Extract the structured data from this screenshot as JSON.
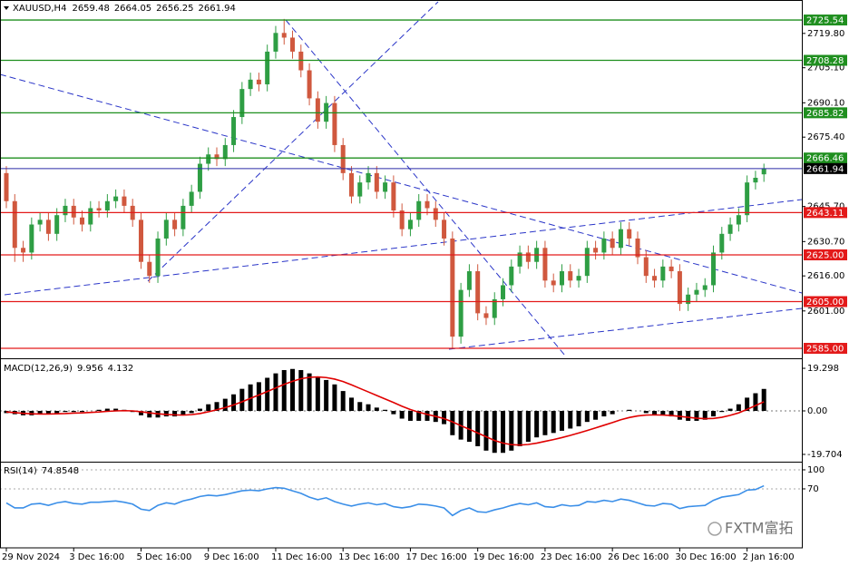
{
  "chart_data": [
    {
      "type": "candlestick",
      "title": "XAUUSD,H4",
      "categories": [
        "29 Nov 2024",
        null,
        null,
        null,
        null,
        null,
        null,
        null,
        "3 Dec 16:00",
        null,
        null,
        null,
        null,
        null,
        null,
        null,
        "5 Dec 16:00",
        null,
        null,
        null,
        null,
        null,
        null,
        null,
        "9 Dec 16:00",
        null,
        null,
        null,
        null,
        null,
        null,
        null,
        "11 Dec 16:00",
        null,
        null,
        null,
        null,
        null,
        null,
        null,
        "13 Dec 16:00",
        null,
        null,
        null,
        null,
        null,
        null,
        null,
        "17 Dec 16:00",
        null,
        null,
        null,
        null,
        null,
        null,
        null,
        "19 Dec 16:00",
        null,
        null,
        null,
        null,
        null,
        null,
        null,
        "23 Dec 16:00",
        null,
        null,
        null,
        null,
        null,
        null,
        null,
        "26 Dec 16:00",
        null,
        null,
        null,
        null,
        null,
        null,
        null,
        "30 Dec 16:00",
        null,
        null,
        null,
        null,
        null,
        null,
        null,
        "2 Jan 16:00",
        null,
        null
      ],
      "open": [
        2660,
        2648,
        2628,
        2626,
        2638,
        2640,
        2634,
        2642,
        2646,
        2641,
        2638,
        2645,
        2644,
        2648,
        2650,
        2646,
        2640,
        2622,
        2616,
        2632,
        2640,
        2636,
        2646,
        2652,
        2664,
        2668,
        2666,
        2672,
        2684,
        2696,
        2700,
        2698,
        2712,
        2720,
        2718,
        2712,
        2704,
        2692,
        2682,
        2690,
        2672,
        2660,
        2650,
        2656,
        2660,
        2652,
        2656,
        2644,
        2636,
        2640,
        2648,
        2645,
        2640,
        2632,
        2590,
        2610,
        2618,
        2600,
        2598,
        2606,
        2612,
        2620,
        2626,
        2622,
        2628,
        2614,
        2612,
        2618,
        2614,
        2616,
        2628,
        2626,
        2632,
        2628,
        2636,
        2632,
        2624,
        2616,
        2614,
        2620,
        2618,
        2604,
        2608,
        2610,
        2612,
        2626,
        2634,
        2638,
        2642,
        2656,
        2659.48
      ],
      "high": [
        2663,
        2651,
        2631,
        2641,
        2643,
        2643,
        2645,
        2649,
        2649,
        2644,
        2648,
        2648,
        2651,
        2653,
        2653,
        2649,
        2643,
        2625,
        2635,
        2643,
        2643,
        2649,
        2655,
        2667,
        2671,
        2671,
        2675,
        2687,
        2699,
        2703,
        2703,
        2715,
        2723,
        2726,
        2721,
        2715,
        2707,
        2695,
        2693,
        2693,
        2675,
        2663,
        2659,
        2663,
        2663,
        2659,
        2659,
        2647,
        2643,
        2651,
        2651,
        2648,
        2643,
        2635,
        2613,
        2621,
        2621,
        2603,
        2609,
        2615,
        2623,
        2629,
        2629,
        2631,
        2631,
        2617,
        2621,
        2621,
        2619,
        2631,
        2631,
        2635,
        2635,
        2639,
        2639,
        2635,
        2627,
        2619,
        2623,
        2623,
        2621,
        2611,
        2613,
        2615,
        2629,
        2637,
        2641,
        2645,
        2659,
        2661,
        2664.05
      ],
      "low": [
        2645,
        2622,
        2622,
        2623,
        2635,
        2631,
        2631,
        2639,
        2638,
        2635,
        2635,
        2641,
        2641,
        2645,
        2643,
        2637,
        2619,
        2613,
        2613,
        2629,
        2633,
        2633,
        2643,
        2649,
        2661,
        2663,
        2663,
        2669,
        2681,
        2693,
        2695,
        2695,
        2709,
        2715,
        2709,
        2701,
        2689,
        2679,
        2679,
        2669,
        2657,
        2647,
        2647,
        2653,
        2649,
        2649,
        2641,
        2633,
        2633,
        2637,
        2642,
        2637,
        2629,
        2585,
        2587,
        2607,
        2597,
        2595,
        2595,
        2603,
        2609,
        2617,
        2619,
        2619,
        2611,
        2609,
        2609,
        2611,
        2611,
        2613,
        2623,
        2623,
        2625,
        2625,
        2629,
        2621,
        2613,
        2611,
        2611,
        2615,
        2601,
        2601,
        2605,
        2607,
        2609,
        2623,
        2631,
        2635,
        2639,
        2653,
        2656.25
      ],
      "close": [
        2648,
        2628,
        2626,
        2638,
        2640,
        2634,
        2642,
        2646,
        2641,
        2638,
        2645,
        2644,
        2648,
        2650,
        2646,
        2640,
        2622,
        2616,
        2632,
        2640,
        2636,
        2646,
        2652,
        2664,
        2668,
        2666,
        2672,
        2684,
        2696,
        2700,
        2698,
        2712,
        2720,
        2718,
        2712,
        2704,
        2692,
        2682,
        2690,
        2672,
        2660,
        2650,
        2656,
        2660,
        2652,
        2656,
        2644,
        2636,
        2640,
        2648,
        2645,
        2640,
        2632,
        2590,
        2610,
        2618,
        2600,
        2598,
        2606,
        2612,
        2620,
        2626,
        2622,
        2628,
        2614,
        2612,
        2618,
        2614,
        2616,
        2628,
        2626,
        2632,
        2628,
        2636,
        2632,
        2624,
        2616,
        2614,
        2620,
        2618,
        2604,
        2608,
        2610,
        2612,
        2626,
        2634,
        2638,
        2642,
        2656,
        2658,
        2661.94
      ],
      "up_color": "#2e9e44",
      "down_color": "#d0583e",
      "current_color": "#2a2aa8",
      "levels": [
        {
          "value": 2725.54,
          "color": "#1f8f1f"
        },
        {
          "value": 2708.28,
          "color": "#1f8f1f"
        },
        {
          "value": 2685.82,
          "color": "#1f8f1f"
        },
        {
          "value": 2666.46,
          "color": "#1f8f1f"
        },
        {
          "value": 2643.11,
          "color": "#e31a1a"
        },
        {
          "value": 2625,
          "label": "2625.00",
          "color": "#e31a1a"
        },
        {
          "value": 2605,
          "label": "2605.00",
          "color": "#e31a1a"
        },
        {
          "value": 2585,
          "label": "2585.00",
          "color": "#e31a1a"
        }
      ],
      "ylim": [
        2581.9,
        2734.1
      ],
      "yticks": [
        {
          "value": 2719.8,
          "label": "2719.80"
        },
        {
          "value": 2705.1,
          "label": "2705.10"
        },
        {
          "value": 2690.1,
          "label": "2690.10"
        },
        {
          "value": 2675.4,
          "label": "2675.40"
        },
        {
          "value": 2645.7,
          "label": "2645.70"
        },
        {
          "value": 2630.7,
          "label": "2630.70"
        },
        {
          "value": 2616,
          "label": "2616.00"
        },
        {
          "value": 2601,
          "label": "2601.00"
        }
      ],
      "grid": false,
      "watermark": "FXTM富拓"
    },
    {
      "type": "macd",
      "title": "MACD(12,26,9)",
      "series": [
        {
          "name": "MACD",
          "color": "#000000",
          "values": [
            -1,
            -1.5,
            -2,
            -2,
            -1.5,
            -1.5,
            -1,
            -0.5,
            -0.5,
            -0.5,
            0,
            0.5,
            1,
            1,
            0.5,
            -0.5,
            -2,
            -3,
            -3,
            -2.5,
            -2.5,
            -2,
            -1,
            1,
            3,
            4,
            5.5,
            7.5,
            10,
            12,
            13,
            15,
            17,
            18.5,
            19,
            18.5,
            17,
            15,
            14,
            12,
            9,
            6,
            4,
            3,
            1.5,
            0.5,
            -1.5,
            -3.5,
            -4.5,
            -4.5,
            -4.5,
            -5,
            -6,
            -11,
            -13,
            -14,
            -16,
            -18,
            -19,
            -19,
            -18,
            -16,
            -14,
            -12,
            -11,
            -10,
            -9,
            -8,
            -7,
            -5,
            -4,
            -2.5,
            -1.5,
            0,
            0.5,
            0,
            -1,
            -2,
            -2,
            -2.5,
            -4,
            -4.5,
            -4.5,
            -4,
            -2.5,
            -0.5,
            1,
            3,
            6,
            8,
            9.956
          ]
        },
        {
          "name": "Signal",
          "color": "#e00000",
          "values": [
            -0.5,
            -0.8,
            -1.1,
            -1.3,
            -1.4,
            -1.4,
            -1.3,
            -1.2,
            -1,
            -0.9,
            -0.7,
            -0.5,
            -0.2,
            0,
            0.1,
            0,
            -0.4,
            -0.9,
            -1.3,
            -1.6,
            -1.8,
            -1.9,
            -1.7,
            -1.2,
            -0.4,
            0.5,
            1.5,
            2.7,
            4.1,
            5.7,
            7.2,
            8.8,
            10.4,
            12,
            13.4,
            14.6,
            15.2,
            15.4,
            15.1,
            14.4,
            13.3,
            11.8,
            10.2,
            8.6,
            7,
            5.4,
            3.8,
            2.1,
            0.6,
            -0.6,
            -1.6,
            -2.5,
            -3.5,
            -5,
            -6.7,
            -8.3,
            -10,
            -11.7,
            -13.4,
            -14.6,
            -15.3,
            -15.5,
            -15.2,
            -14.6,
            -13.8,
            -13,
            -12.1,
            -11.1,
            -10,
            -8.9,
            -7.7,
            -6.5,
            -5.3,
            -4,
            -3,
            -2.3,
            -1.9,
            -1.8,
            -1.9,
            -2.1,
            -2.5,
            -2.9,
            -3.3,
            -3.5,
            -3.4,
            -2.9,
            -2,
            -0.9,
            0.7,
            2.4,
            4.132
          ]
        }
      ],
      "ylim": [
        -22.6,
        22.6
      ],
      "yticks": [
        19.298,
        {
          "value": 0,
          "label": "0.00"
        },
        -19.704
      ]
    },
    {
      "type": "rsi",
      "title": "RSI(14)",
      "series": [
        {
          "name": "RSI",
          "color": "#3b8fe8",
          "values": [
            48,
            40,
            40,
            46,
            47,
            44,
            48,
            50,
            47,
            46,
            49,
            49,
            50,
            51,
            49,
            46,
            38,
            36,
            44,
            48,
            46,
            51,
            54,
            58,
            60,
            59,
            61,
            64,
            67,
            68,
            67,
            70,
            72,
            71,
            67,
            63,
            57,
            53,
            56,
            50,
            46,
            43,
            46,
            48,
            45,
            47,
            42,
            40,
            42,
            46,
            45,
            43,
            40,
            28,
            36,
            40,
            34,
            33,
            37,
            40,
            44,
            47,
            45,
            48,
            42,
            41,
            45,
            43,
            44,
            50,
            49,
            52,
            50,
            54,
            52,
            48,
            44,
            43,
            47,
            46,
            39,
            42,
            43,
            44,
            52,
            57,
            59,
            61,
            68,
            69,
            74.8548
          ]
        }
      ],
      "ylim": [
        -22.9,
        111.4
      ],
      "yticks": [
        100,
        70
      ]
    }
  ]
}
